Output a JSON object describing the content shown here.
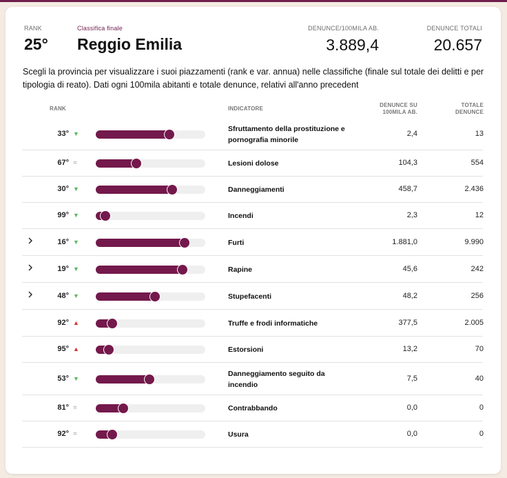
{
  "header": {
    "rank_label": "RANK",
    "rank_value": "25°",
    "classifica_label": "Classifica finale",
    "province": "Reggio Emilia",
    "per100k_label": "DENUNCE/100MILA AB.",
    "per100k_value": "3.889,4",
    "total_label": "DENUNCE TOTALI",
    "total_value": "20.657"
  },
  "description": "Scegli la provincia per visualizzare i suoi piazzamenti (rank e var. annua) nelle classifiche (finale sul totale dei delitti e per tipologia di reato). Dati ogni 100mila abitanti e totale denunce, relativi all'anno precedent",
  "table": {
    "col_rank": "RANK",
    "col_indicator": "INDICATORE",
    "col_per100k_line1": "DENUNCE SU",
    "col_per100k_line2": "100MILA AB.",
    "col_total_line1": "TOTALE",
    "col_total_line2": "DENUNCE",
    "rows": [
      {
        "expandable": false,
        "rank": "33°",
        "trend": "down",
        "score": 0.67,
        "indicator": "Sfruttamento della prostituzione e pornografia minorile",
        "per100k": "2,4",
        "total": "13"
      },
      {
        "expandable": false,
        "rank": "67°",
        "trend": "same",
        "score": 0.37,
        "indicator": "Lesioni dolose",
        "per100k": "104,3",
        "total": "554"
      },
      {
        "expandable": false,
        "rank": "30°",
        "trend": "down",
        "score": 0.7,
        "indicator": "Danneggiamenti",
        "per100k": "458,7",
        "total": "2.436"
      },
      {
        "expandable": false,
        "rank": "99°",
        "trend": "down",
        "score": 0.09,
        "indicator": "Incendi",
        "per100k": "2,3",
        "total": "12"
      },
      {
        "expandable": true,
        "rank": "16°",
        "trend": "down",
        "score": 0.81,
        "indicator": "Furti",
        "per100k": "1.881,0",
        "total": "9.990"
      },
      {
        "expandable": true,
        "rank": "19°",
        "trend": "down",
        "score": 0.79,
        "indicator": "Rapine",
        "per100k": "45,6",
        "total": "242"
      },
      {
        "expandable": true,
        "rank": "48°",
        "trend": "down",
        "score": 0.54,
        "indicator": "Stupefacenti",
        "per100k": "48,2",
        "total": "256"
      },
      {
        "expandable": false,
        "rank": "92°",
        "trend": "up",
        "score": 0.15,
        "indicator": "Truffe e frodi informatiche",
        "per100k": "377,5",
        "total": "2.005"
      },
      {
        "expandable": false,
        "rank": "95°",
        "trend": "up",
        "score": 0.12,
        "indicator": "Estorsioni",
        "per100k": "13,2",
        "total": "70"
      },
      {
        "expandable": false,
        "rank": "53°",
        "trend": "down",
        "score": 0.49,
        "indicator": "Danneggiamento seguito da incendio",
        "per100k": "7,5",
        "total": "40"
      },
      {
        "expandable": false,
        "rank": "81°",
        "trend": "same",
        "score": 0.25,
        "indicator": "Contrabbando",
        "per100k": "0,0",
        "total": "0"
      },
      {
        "expandable": false,
        "rank": "92°",
        "trend": "same",
        "score": 0.15,
        "indicator": "Usura",
        "per100k": "0,0",
        "total": "0"
      }
    ]
  },
  "colors": {
    "accent": "#74194c",
    "trend_down": "#5cb85c",
    "trend_up": "#d9342b",
    "trend_same": "#999999"
  },
  "icons": {
    "expand": "chevron-right-icon",
    "down": "triangle-down-icon",
    "up": "triangle-up-icon",
    "same": "equals-icon"
  }
}
